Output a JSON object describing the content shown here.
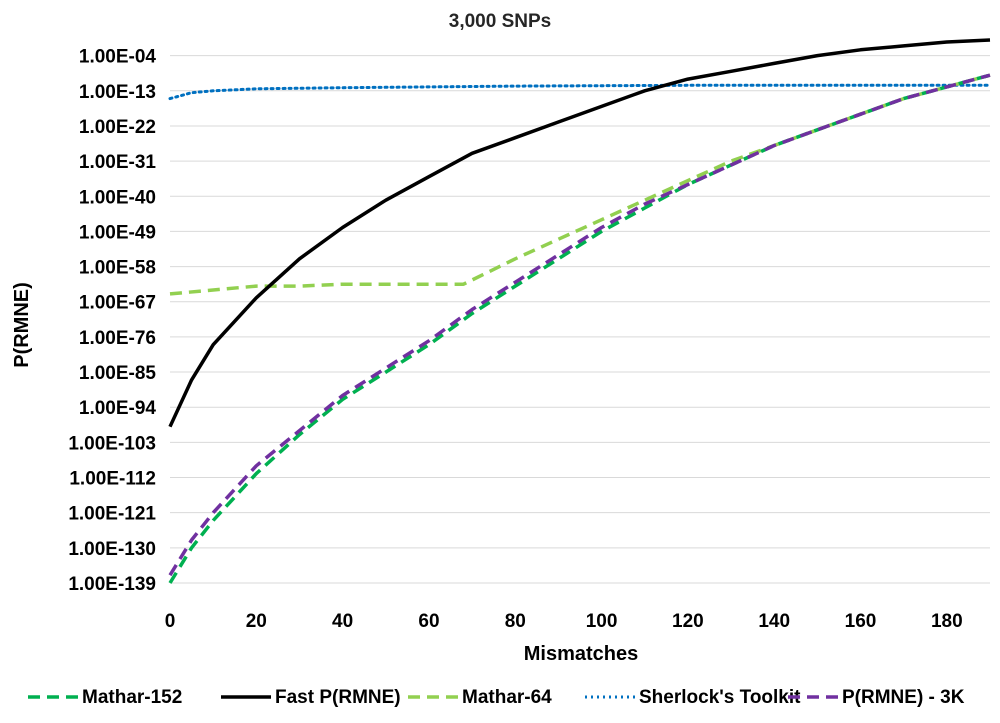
{
  "chart_data": {
    "type": "line",
    "title": "3,000 SNPs",
    "xlabel": "Mismatches",
    "ylabel": "P(RMNE)",
    "y_scale": "log10",
    "xlim": [
      0,
      190
    ],
    "ylim_exponent": [
      -139,
      0
    ],
    "x_ticks": [
      "0",
      "20",
      "40",
      "60",
      "80",
      "100",
      "120",
      "140",
      "160",
      "180"
    ],
    "y_ticks": [
      "1.00E-04",
      "1.00E-13",
      "1.00E-22",
      "1.00E-31",
      "1.00E-40",
      "1.00E-49",
      "1.00E-58",
      "1.00E-67",
      "1.00E-76",
      "1.00E-85",
      "1.00E-94",
      "1.00E-103",
      "1.00E-112",
      "1.00E-121",
      "1.00E-130",
      "1.00E-139"
    ],
    "grid": "horizontal",
    "legend_position": "bottom",
    "series": [
      {
        "name": "Mathar-152",
        "color": "#00b050",
        "style": "dashed",
        "x": [
          0,
          5,
          10,
          20,
          30,
          40,
          50,
          60,
          70,
          80,
          90,
          100,
          110,
          120,
          130,
          140,
          150,
          160,
          170,
          180,
          190
        ],
        "log10_y": [
          -139,
          -130,
          -123,
          -111,
          -101,
          -92,
          -85,
          -78,
          -70,
          -63,
          -56,
          -49,
          -43,
          -37,
          -32,
          -27,
          -23,
          -19,
          -15,
          -12,
          -9
        ]
      },
      {
        "name": "Fast P(RMNE)",
        "color": "#000000",
        "style": "solid",
        "x": [
          0,
          5,
          10,
          20,
          30,
          40,
          50,
          60,
          70,
          80,
          90,
          100,
          110,
          120,
          130,
          140,
          150,
          160,
          170,
          180,
          190
        ],
        "log10_y": [
          -99,
          -87,
          -78,
          -66,
          -56,
          -48,
          -41,
          -35,
          -29,
          -25,
          -21,
          -17,
          -13,
          -10,
          -8,
          -6,
          -4,
          -2.5,
          -1.5,
          -0.5,
          0
        ]
      },
      {
        "name": "Mathar-64",
        "color": "#92d050",
        "style": "dashed",
        "x": [
          0,
          10,
          20,
          30,
          40,
          50,
          60,
          68,
          80,
          90,
          100,
          110,
          120,
          130,
          140,
          150,
          160,
          170,
          180,
          190
        ],
        "log10_y": [
          -65,
          -64,
          -63,
          -63,
          -62.5,
          -62.5,
          -62.5,
          -62.5,
          -56,
          -51,
          -46,
          -41,
          -36,
          -31,
          -27,
          -23,
          -19,
          -15,
          -12,
          -9
        ]
      },
      {
        "name": "Sherlock's Toolkit",
        "color": "#0070c0",
        "style": "dotted",
        "x": [
          0,
          5,
          10,
          20,
          40,
          60,
          80,
          100,
          120,
          140,
          160,
          180,
          190
        ],
        "log10_y": [
          -15,
          -13.5,
          -13,
          -12.5,
          -12.2,
          -12,
          -11.8,
          -11.7,
          -11.6,
          -11.6,
          -11.6,
          -11.6,
          -11.6
        ]
      },
      {
        "name": "P(RMNE) - 3K",
        "color": "#7030a0",
        "style": "dashed",
        "x": [
          0,
          5,
          10,
          20,
          30,
          40,
          50,
          60,
          70,
          80,
          90,
          100,
          110,
          120,
          130,
          140,
          150,
          160,
          170,
          180,
          190
        ],
        "log10_y": [
          -137,
          -128,
          -121,
          -109,
          -100,
          -91,
          -84,
          -77,
          -69,
          -62,
          -55,
          -48,
          -42,
          -37,
          -32,
          -27,
          -23,
          -19,
          -15,
          -12,
          -9
        ]
      }
    ]
  }
}
